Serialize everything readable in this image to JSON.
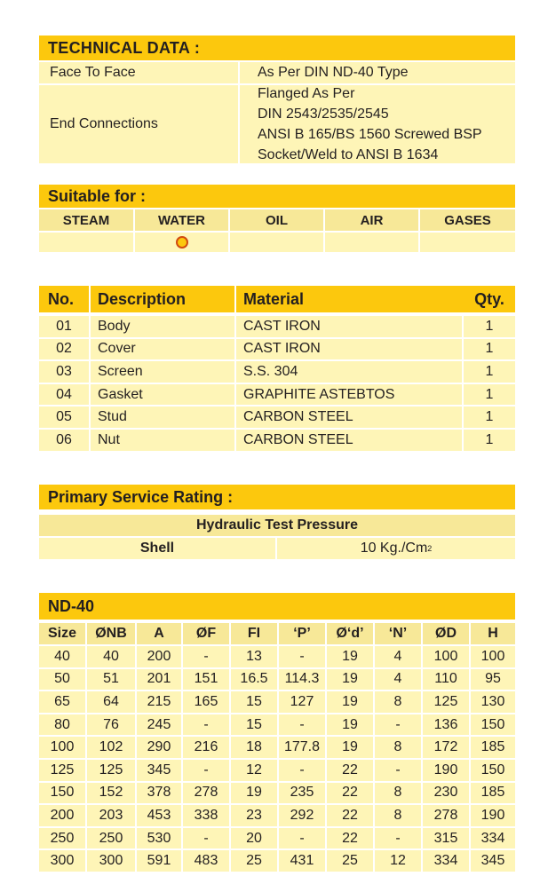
{
  "technical": {
    "title": "TECHNICAL DATA :",
    "face_label": "Face To Face",
    "face_value": "As Per DIN ND-40 Type",
    "end_label": "End Connections",
    "end_lines": [
      "Flanged As Per",
      "DIN 2543/2535/2545",
      "ANSI B 165/BS 1560 Screwed BSP",
      "Socket/Weld to ANSI B 1634"
    ]
  },
  "suitable": {
    "title": "Suitable for :",
    "media": [
      "STEAM",
      "WATER",
      "OIL",
      "AIR",
      "GASES"
    ],
    "selected": "WATER"
  },
  "parts": {
    "headers": [
      "No.",
      "Description",
      "Material",
      "Qty."
    ],
    "rows": [
      [
        "01",
        "Body",
        "CAST IRON",
        "1"
      ],
      [
        "02",
        "Cover",
        "CAST IRON",
        "1"
      ],
      [
        "03",
        "Screen",
        "S.S. 304",
        "1"
      ],
      [
        "04",
        "Gasket",
        "GRAPHITE ASTEBTOS",
        "1"
      ],
      [
        "05",
        "Stud",
        "CARBON STEEL",
        "1"
      ],
      [
        "06",
        "Nut",
        "CARBON STEEL",
        "1"
      ]
    ]
  },
  "service": {
    "title": "Primary Service Rating :",
    "subheader": "Hydraulic Test Pressure",
    "shell_label": "Shell",
    "shell_value": "10 Kg./Cm",
    "shell_unit_sup": "2"
  },
  "nd40": {
    "title": "ND-40",
    "headers": [
      "Size",
      "ØNB",
      "A",
      "ØF",
      "FI",
      "‘P’",
      "Ø‘d’",
      "‘N’",
      "ØD",
      "H"
    ],
    "rows": [
      [
        "40",
        "40",
        "200",
        "-",
        "13",
        "-",
        "19",
        "4",
        "100",
        "100"
      ],
      [
        "50",
        "51",
        "201",
        "151",
        "16.5",
        "114.3",
        "19",
        "4",
        "110",
        "95"
      ],
      [
        "65",
        "64",
        "215",
        "165",
        "15",
        "127",
        "19",
        "8",
        "125",
        "130"
      ],
      [
        "80",
        "76",
        "245",
        "-",
        "15",
        "-",
        "19",
        "-",
        "136",
        "150"
      ],
      [
        "100",
        "102",
        "290",
        "216",
        "18",
        "177.8",
        "19",
        "8",
        "172",
        "185"
      ],
      [
        "125",
        "125",
        "345",
        "-",
        "12",
        "-",
        "22",
        "-",
        "190",
        "150"
      ],
      [
        "150",
        "152",
        "378",
        "278",
        "19",
        "235",
        "22",
        "8",
        "230",
        "185"
      ],
      [
        "200",
        "203",
        "453",
        "338",
        "23",
        "292",
        "22",
        "8",
        "278",
        "190"
      ],
      [
        "250",
        "250",
        "530",
        "-",
        "20",
        "-",
        "22",
        "-",
        "315",
        "334"
      ],
      [
        "300",
        "300",
        "591",
        "483",
        "25",
        "431",
        "25",
        "12",
        "334",
        "345"
      ]
    ]
  },
  "colors": {
    "header": "#fcc80d",
    "cell": "#fef5b7",
    "subheader": "#f7e898",
    "dot_border": "#d14a10"
  }
}
